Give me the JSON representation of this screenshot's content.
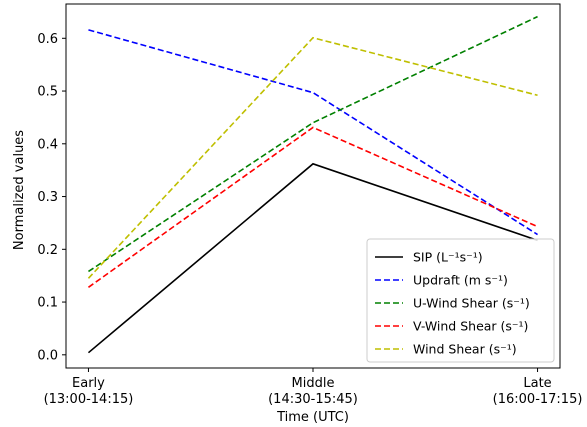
{
  "chart_data": {
    "type": "line",
    "xlabel": "Time (UTC)",
    "ylabel": "Normalized values",
    "ylim": [
      -0.025,
      0.665
    ],
    "xlim": [
      -0.1,
      2.1
    ],
    "grid": false,
    "legend_placement": "lower-right",
    "categories": [
      {
        "name": "Early",
        "range": "(13:00-14:15)"
      },
      {
        "name": "Middle",
        "range": "(14:30-15:45)"
      },
      {
        "name": "Late",
        "range": "(16:00-17:15)"
      }
    ],
    "yticks": [
      0.0,
      0.1,
      0.2,
      0.3,
      0.4,
      0.5,
      0.6
    ],
    "series": [
      {
        "name": "SIP (L⁻¹s⁻¹)",
        "color": "#000000",
        "dashed": false,
        "values": [
          0.004,
          0.362,
          0.217
        ]
      },
      {
        "name": "Updraft (m s⁻¹)",
        "color": "#0000ff",
        "dashed": true,
        "values": [
          0.616,
          0.497,
          0.228
        ]
      },
      {
        "name": "U-Wind Shear (s⁻¹)",
        "color": "#008000",
        "dashed": true,
        "values": [
          0.158,
          0.44,
          0.641
        ]
      },
      {
        "name": "V-Wind Shear (s⁻¹)",
        "color": "#ff0000",
        "dashed": true,
        "values": [
          0.128,
          0.431,
          0.243
        ]
      },
      {
        "name": "Wind Shear (s⁻¹)",
        "color": "#bfbf00",
        "dashed": true,
        "values": [
          0.145,
          0.601,
          0.492
        ]
      }
    ]
  }
}
